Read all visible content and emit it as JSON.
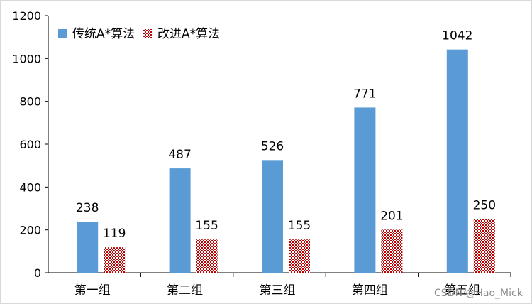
{
  "chart_data": {
    "type": "bar",
    "categories": [
      "第一组",
      "第二组",
      "第三组",
      "第四组",
      "第五组"
    ],
    "series": [
      {
        "name": "传统A*算法",
        "values": [
          238,
          487,
          526,
          771,
          1042
        ],
        "color": "#5b9bd5",
        "pattern": "solid"
      },
      {
        "name": "改进A*算法",
        "values": [
          119,
          155,
          155,
          201,
          250
        ],
        "color": "#c00000",
        "pattern": "checker"
      }
    ],
    "title": "",
    "xlabel": "",
    "ylabel": "",
    "ylim": [
      0,
      1200
    ],
    "yticks": [
      0,
      200,
      400,
      600,
      800,
      1000,
      1200
    ],
    "grid": false,
    "legend": "top-left",
    "data_labels": true
  },
  "watermark": "CSDN @Hao_Mick"
}
